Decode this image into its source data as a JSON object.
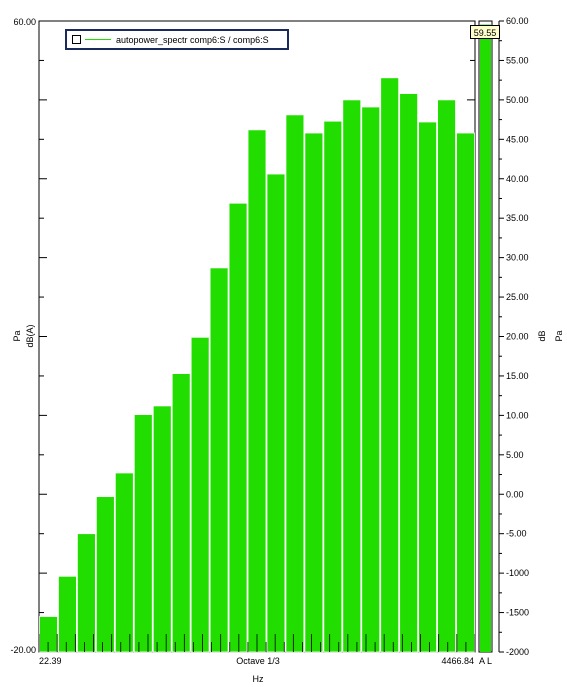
{
  "chart_data": {
    "type": "bar",
    "legend": {
      "label": "autopower_spectr comp6:S / comp6:S",
      "position": "top-left"
    },
    "cursor_value": "59.55",
    "x_axis": {
      "label": "Hz",
      "center_label": "Octave 1/3",
      "start_label": "22.39",
      "end_label": "4466.84"
    },
    "left_axis": {
      "unit_top": "Pa",
      "unit_bottom": "dB(A)",
      "top_label": "60.00",
      "bottom_label": "-20.00",
      "ylim": [
        -20,
        60
      ]
    },
    "right_axis": {
      "unit_top": "Pa",
      "unit_bottom": "dB",
      "ylim": [
        -20,
        60
      ],
      "ticks": [
        "60.00",
        "55.00",
        "50.00",
        "45.00",
        "40.00",
        "35.00",
        "30.00",
        "25.00",
        "20.00",
        "15.00",
        "10.00",
        "5.00",
        "0.00",
        "-5.00",
        "-1000",
        "-1500",
        "-2000"
      ],
      "tick_values": [
        60,
        55,
        50,
        45,
        40,
        35,
        30,
        25,
        20,
        15,
        10,
        5,
        0,
        -5,
        -10,
        -15,
        -20
      ]
    },
    "meter": {
      "value": 59.55,
      "labels": "A L"
    },
    "values": [
      -15.5,
      -10.4,
      -5.0,
      -0.3,
      2.7,
      10.1,
      11.2,
      15.3,
      19.9,
      28.7,
      36.9,
      46.2,
      40.6,
      48.1,
      45.8,
      47.3,
      50.0,
      49.1,
      52.8,
      50.8,
      47.2,
      50.0,
      45.8
    ],
    "bar_color": "#22dd00"
  }
}
